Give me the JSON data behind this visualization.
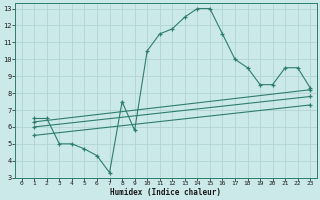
{
  "xlabel": "Humidex (Indice chaleur)",
  "bg_color": "#cce9e9",
  "grid_color": "#b2d4d4",
  "line_color": "#2e7d6e",
  "xlim": [
    -0.5,
    23.5
  ],
  "ylim": [
    3,
    13.3
  ],
  "xticks": [
    0,
    1,
    2,
    3,
    4,
    5,
    6,
    7,
    8,
    9,
    10,
    11,
    12,
    13,
    14,
    15,
    16,
    17,
    18,
    19,
    20,
    21,
    22,
    23
  ],
  "yticks": [
    3,
    4,
    5,
    6,
    7,
    8,
    9,
    10,
    11,
    12,
    13
  ],
  "line1_x": [
    1,
    2,
    3,
    4,
    5,
    6,
    7,
    8,
    9,
    10,
    11,
    12,
    13,
    14,
    15,
    16,
    17,
    18,
    19,
    20,
    21,
    22,
    23
  ],
  "line1_y": [
    6.5,
    6.5,
    5.0,
    5.0,
    4.7,
    4.3,
    3.3,
    7.5,
    5.8,
    10.5,
    11.5,
    11.8,
    12.5,
    13.0,
    13.0,
    11.5,
    10.0,
    9.5,
    8.5,
    8.5,
    9.5,
    9.5,
    8.3
  ],
  "line2_x": [
    1,
    23
  ],
  "line2_y": [
    6.3,
    8.2
  ],
  "line3_x": [
    1,
    23
  ],
  "line3_y": [
    6.0,
    7.8
  ],
  "line4_x": [
    1,
    23
  ],
  "line4_y": [
    5.5,
    7.3
  ]
}
